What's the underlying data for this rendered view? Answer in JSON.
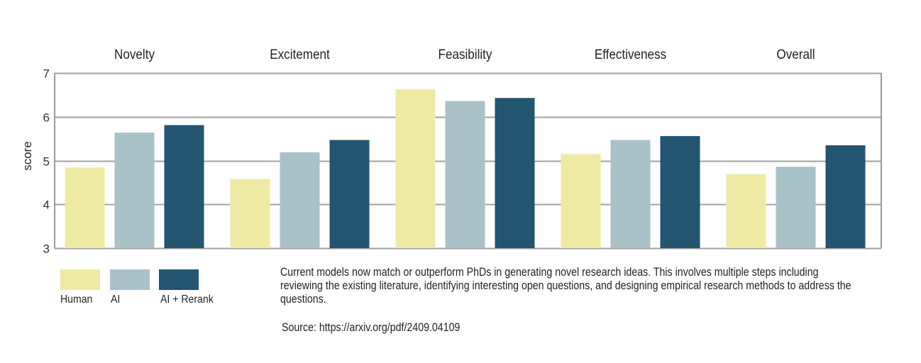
{
  "chart_data": {
    "type": "bar",
    "title": "",
    "ylabel": "score",
    "xlabel": "",
    "ylim": [
      3,
      7
    ],
    "yticks": [
      3,
      4,
      5,
      6,
      7
    ],
    "grid": true,
    "legend_position": "bottom-left",
    "categories": [
      "Novelty",
      "Excitement",
      "Feasibility",
      "Effectiveness",
      "Overall"
    ],
    "series": [
      {
        "name": "Human",
        "color": "#eeeaa4",
        "values": [
          4.84,
          4.58,
          6.63,
          5.15,
          4.69
        ]
      },
      {
        "name": "AI",
        "color": "#a9c2c8",
        "values": [
          5.64,
          5.19,
          6.36,
          5.47,
          4.86
        ]
      },
      {
        "name": "AI + Rerank",
        "color": "#235470",
        "values": [
          5.81,
          5.47,
          6.43,
          5.56,
          5.35
        ]
      }
    ]
  },
  "legend": {
    "items": [
      {
        "label": "Human",
        "color": "#eeeaa4"
      },
      {
        "label": "AI",
        "color": "#a9c2c8"
      },
      {
        "label": "AI + Rerank",
        "color": "#235470"
      }
    ]
  },
  "caption": "Current models now match or outperform PhDs in generating novel research ideas. This involves multiple steps including reviewing the existing literature, identifying interesting open questions, and designing empirical research methods to address the questions.",
  "source": "Source: https://arxiv.org/pdf/2409.04109",
  "colors": {
    "grid": "#a0a0a0",
    "axis": "#999999"
  }
}
